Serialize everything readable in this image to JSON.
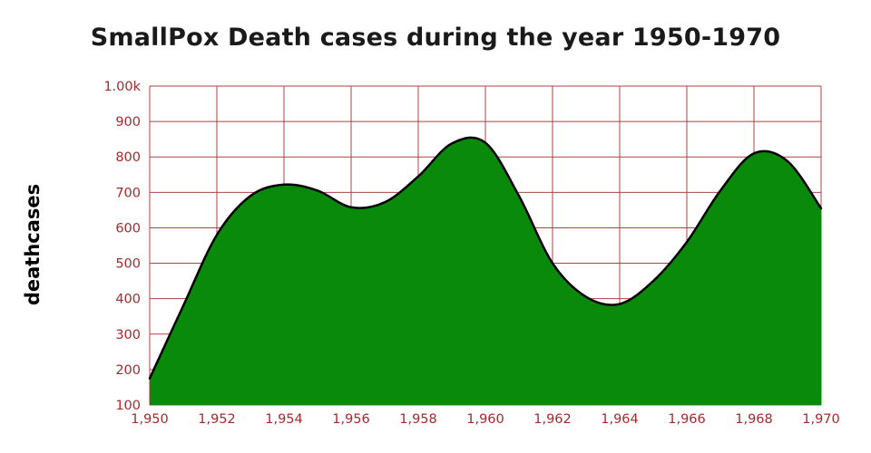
{
  "title": "SmallPox Death cases during the year 1950-1970",
  "y_axis_title": "deathcases",
  "chart_data": {
    "type": "area",
    "title": "SmallPox Death cases during the year 1950-1970",
    "xlabel": "",
    "ylabel": "deathcases",
    "x": [
      1950,
      1951,
      1952,
      1953,
      1954,
      1955,
      1956,
      1957,
      1958,
      1959,
      1960,
      1961,
      1962,
      1963,
      1964,
      1965,
      1966,
      1967,
      1968,
      1969,
      1970
    ],
    "values": [
      175,
      380,
      580,
      690,
      722,
      705,
      658,
      672,
      745,
      838,
      840,
      690,
      500,
      405,
      385,
      450,
      560,
      705,
      810,
      788,
      655
    ],
    "xlim": [
      1950,
      1970
    ],
    "ylim": [
      100,
      1000
    ],
    "x_ticks": [
      1950,
      1952,
      1954,
      1956,
      1958,
      1960,
      1962,
      1964,
      1966,
      1968,
      1970
    ],
    "x_tick_labels": [
      "1,950",
      "1,952",
      "1,954",
      "1,956",
      "1,958",
      "1,960",
      "1,962",
      "1,964",
      "1,966",
      "1,968",
      "1,970"
    ],
    "y_ticks": [
      100,
      200,
      300,
      400,
      500,
      600,
      700,
      800,
      900,
      1000
    ],
    "y_tick_labels": [
      "100",
      "200",
      "300",
      "400",
      "500",
      "600",
      "700",
      "800",
      "900",
      "1.00k"
    ],
    "grid": true,
    "legend": "none",
    "colors": {
      "area_fill": "#0a8a0a",
      "area_line": "#000000",
      "grid_line": "#a94442",
      "tick_label": "#a52a2a",
      "title_text": "#1a1a1a",
      "axis_title_text": "#000000",
      "background": "#ffffff"
    }
  }
}
